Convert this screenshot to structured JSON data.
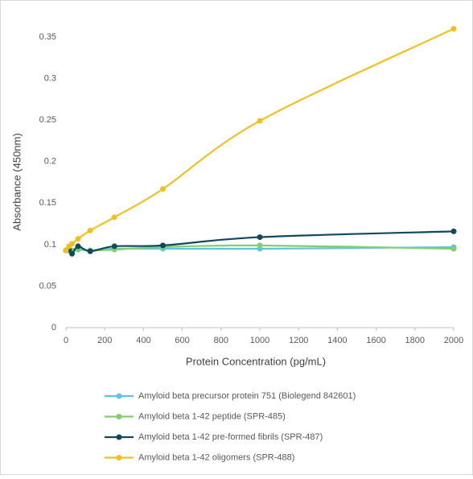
{
  "chart_data": {
    "type": "line",
    "x_label": "Protein Concentration (pg/mL)",
    "y_label": "Absorbance (450nm)",
    "x": [
      0,
      15.625,
      31.25,
      62.5,
      125,
      250,
      500,
      1000,
      2000
    ],
    "series": [
      {
        "name": "Amyloid beta precursor protein 751 (Biolegend 842601)",
        "color": "#61c2e6",
        "values": [
          0.093,
          0.093,
          0.092,
          0.094,
          0.093,
          0.095,
          0.095,
          0.095,
          0.097
        ]
      },
      {
        "name": "Amyloid beta 1-42 peptide (SPR-485)",
        "color": "#80d06e",
        "values": [
          0.093,
          0.093,
          0.093,
          0.095,
          0.093,
          0.094,
          0.097,
          0.099,
          0.095
        ]
      },
      {
        "name": "Amyloid beta 1-42 pre-formed fibrils (SPR-487)",
        "color": "#0f4a5c",
        "values": [
          0.093,
          0.094,
          0.089,
          0.098,
          0.092,
          0.098,
          0.099,
          0.109,
          0.116
        ]
      },
      {
        "name": "Amyloid beta 1-42 oligomers (SPR-488)",
        "color": "#f2c01e",
        "values": [
          0.093,
          0.098,
          0.101,
          0.107,
          0.117,
          0.133,
          0.167,
          0.249,
          0.36
        ]
      }
    ],
    "xlim": [
      0,
      2000
    ],
    "xticks": [
      0,
      200,
      400,
      600,
      800,
      1000,
      1200,
      1400,
      1600,
      1800,
      2000
    ],
    "ylim": [
      0,
      0.35
    ],
    "yticks": [
      0,
      0.05,
      0.1,
      0.15,
      0.2,
      0.25,
      0.3,
      0.35
    ],
    "smooth": true
  }
}
